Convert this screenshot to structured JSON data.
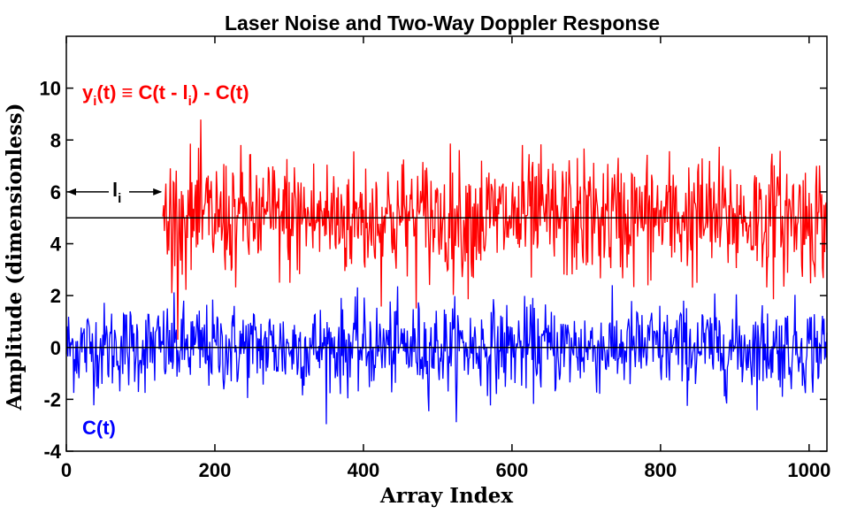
{
  "chart_data": {
    "type": "line",
    "title": "Laser Noise and Two-Way Doppler Response",
    "xlabel": "Array Index",
    "ylabel": "Amplitude (dimensionless)",
    "xlim": [
      0,
      1024
    ],
    "ylim": [
      -4,
      12
    ],
    "xticks": [
      "0",
      "200",
      "400",
      "600",
      "800",
      "1000"
    ],
    "yticks": [
      "-4",
      "-2",
      "0",
      "2",
      "4",
      "6",
      "8",
      "10"
    ],
    "grid": false,
    "reference_lines": [
      0,
      5
    ],
    "annotations": {
      "y_label_main": "y",
      "y_label_sub": "i",
      "y_label_rest": "(t) ≡ C(t - l",
      "y_label_sub2": "i",
      "y_label_end": ") - C(t)",
      "c_label": "C(t)",
      "delay_label": "l",
      "delay_label_sub": "i"
    },
    "series": [
      {
        "label": "y_i(t)",
        "color": "#ff0000",
        "x_start": 130,
        "x_end": 1024,
        "offset": 5,
        "std": 1.2,
        "min": 0.3,
        "max": 10.1
      },
      {
        "label": "C(t)",
        "color": "#0000ff",
        "x_start": 0,
        "x_end": 1024,
        "offset": 0,
        "std": 0.85,
        "min": -3.5,
        "max": 2.4
      }
    ],
    "delay_arrow": {
      "from": 0,
      "to": 130,
      "y": 6
    }
  }
}
